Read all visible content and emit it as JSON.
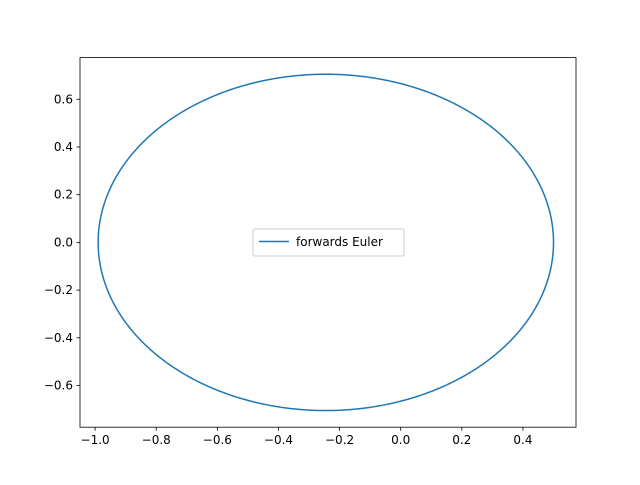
{
  "chart_data": {
    "type": "line",
    "title": "",
    "xlabel": "",
    "ylabel": "",
    "xlim": [
      -1.0494,
      0.5736
    ],
    "ylim": [
      -0.7748,
      0.7748
    ],
    "xticks": [
      -1.0,
      -0.8,
      -0.6,
      -0.4,
      -0.2,
      0.0,
      0.2,
      0.4
    ],
    "xtick_labels": [
      "−1.0",
      "−0.8",
      "−0.6",
      "−0.4",
      "−0.2",
      "0.0",
      "0.2",
      "0.4"
    ],
    "yticks": [
      -0.6,
      -0.4,
      -0.2,
      0.0,
      0.2,
      0.4,
      0.6
    ],
    "ytick_labels": [
      "−0.6",
      "−0.4",
      "−0.2",
      "0.0",
      "0.2",
      "0.4",
      "0.6"
    ],
    "grid": false,
    "legend": {
      "position": "center",
      "entries": [
        "forwards Euler"
      ]
    },
    "series": [
      {
        "name": "forwards Euler",
        "color": "#1f77b4",
        "shape": "closed orbit (ellipse)",
        "center": [
          -0.245,
          0.0
        ],
        "semi_axis_x": 0.745,
        "semi_axis_y": 0.705,
        "x_range": [
          -0.99,
          0.5
        ],
        "y_range": [
          -0.705,
          0.705
        ]
      }
    ]
  }
}
